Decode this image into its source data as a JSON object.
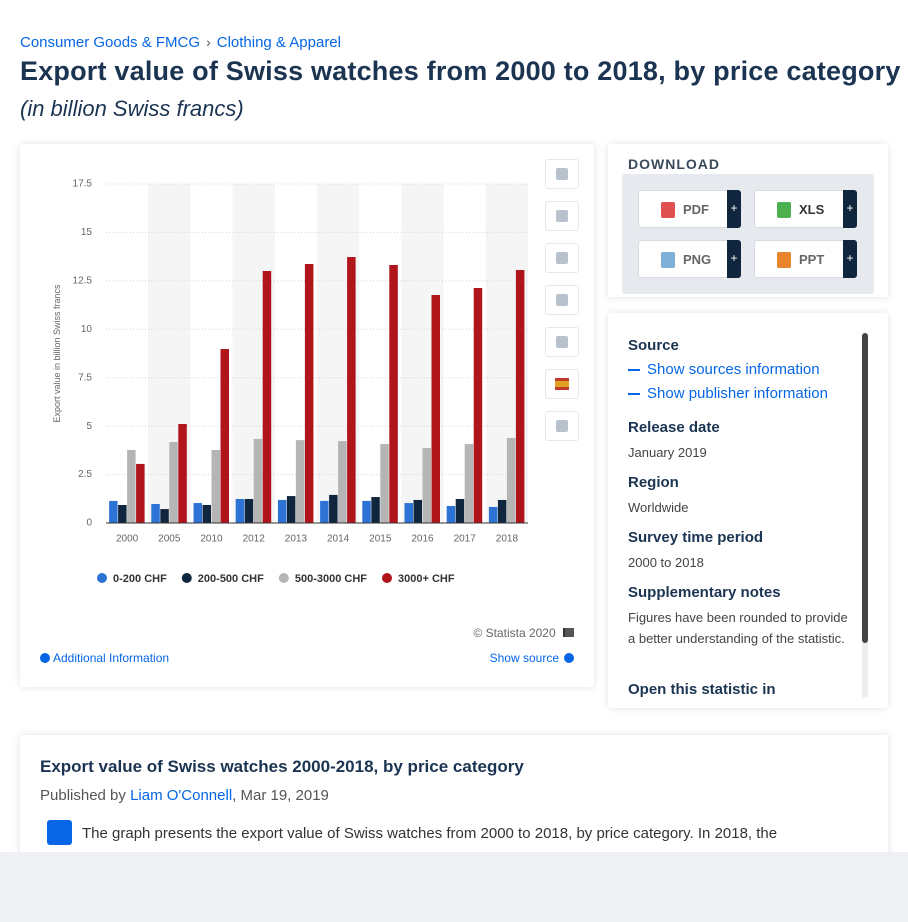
{
  "breadcrumb": [
    "Consumer Goods & FMCG",
    "Clothing & Apparel"
  ],
  "breadcrumb_separator": "›",
  "header": {
    "title": "Export value of Swiss watches from 2000 to 2018, by price category",
    "subtitle": "(in billion Swiss francs)"
  },
  "chart_data": {
    "type": "bar",
    "y_label": "Export value in billion Swiss francs",
    "categories": [
      "2000",
      "2005",
      "2010",
      "2012",
      "2013",
      "2014",
      "2015",
      "2016",
      "2017",
      "2018"
    ],
    "series": [
      {
        "name": "0-200 CHF",
        "color": "#2d73d6",
        "values": [
          1.14,
          0.98,
          1.03,
          1.24,
          1.19,
          1.14,
          1.14,
          1.03,
          0.88,
          0.83
        ]
      },
      {
        "name": "200-500 CHF",
        "color": "#10263f",
        "values": [
          0.93,
          0.72,
          0.93,
          1.24,
          1.39,
          1.45,
          1.34,
          1.19,
          1.24,
          1.19
        ]
      },
      {
        "name": "500-3000 CHF",
        "color": "#b5b5b5",
        "values": [
          3.77,
          4.18,
          3.77,
          4.34,
          4.28,
          4.23,
          4.08,
          3.87,
          4.08,
          4.39
        ]
      },
      {
        "name": "3000+ CHF",
        "color": "#b1151c",
        "values": [
          3.05,
          5.11,
          8.98,
          13.01,
          13.37,
          13.73,
          13.32,
          11.77,
          12.13,
          13.06
        ]
      }
    ],
    "ylim": [
      0,
      17.5
    ],
    "yticks": [
      0,
      2.5,
      5,
      7.5,
      10,
      12.5,
      15,
      17.5
    ],
    "grid": true,
    "legend": "bottom"
  },
  "chart_footer": {
    "copyright": "© Statista 2020",
    "additional_info": "Additional Information",
    "show_source": "Show source"
  },
  "download": {
    "title": "DOWNLOAD",
    "formats": [
      "PDF",
      "XLS",
      "PNG",
      "PPT"
    ],
    "plus": "+"
  },
  "details": {
    "source_heading": "Source",
    "links": [
      "Show sources information",
      "Show publisher information"
    ],
    "items": [
      {
        "label": "Release date",
        "value": "January 2019"
      },
      {
        "label": "Region",
        "value": "Worldwide"
      },
      {
        "label": "Survey time period",
        "value": "2000 to 2018"
      },
      {
        "label": "Supplementary notes",
        "value": "Figures have been rounded to provide a better understanding of the statistic."
      }
    ],
    "cut_off": "Open this statistic in"
  },
  "description": {
    "title": "Export value of Swiss watches 2000-2018, by price category",
    "published_by": "Published by",
    "author": "Liam O'Connell",
    "date": ", Mar 19, 2019",
    "text": "The graph presents the export value of Swiss watches from 2000 to 2018, by price category. In 2018, the"
  }
}
